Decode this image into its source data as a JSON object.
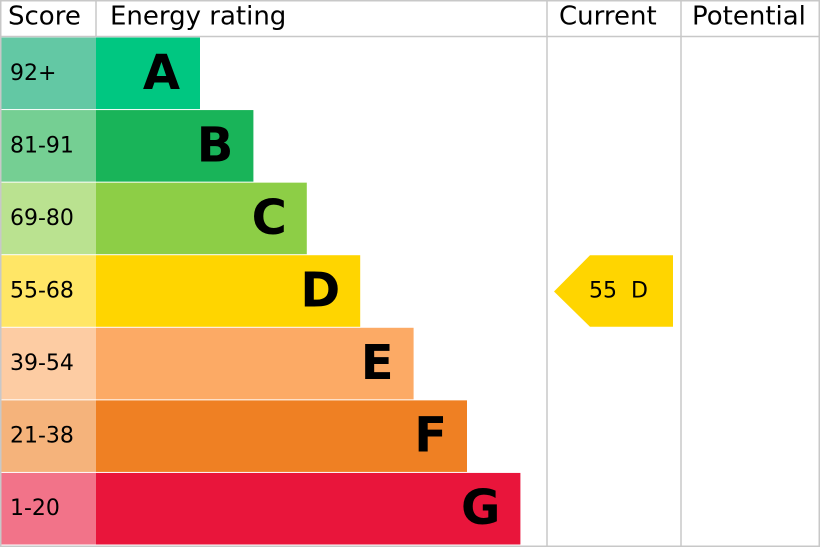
{
  "header": {
    "score": "Score",
    "rating": "Energy rating",
    "current": "Current",
    "potential": "Potential"
  },
  "bands": [
    {
      "score": "92+",
      "letter": "A",
      "color": "#00c781",
      "score_color": "#63c8a4"
    },
    {
      "score": "81-91",
      "letter": "B",
      "color": "#19b459",
      "score_color": "#75cf93"
    },
    {
      "score": "69-80",
      "letter": "C",
      "color": "#8dce46",
      "score_color": "#bae290"
    },
    {
      "score": "55-68",
      "letter": "D",
      "color": "#ffd500",
      "score_color": "#ffe666"
    },
    {
      "score": "39-54",
      "letter": "E",
      "color": "#fcaa65",
      "score_color": "#fdcca3"
    },
    {
      "score": "21-38",
      "letter": "F",
      "color": "#ef8023",
      "score_color": "#f5b37b"
    },
    {
      "score": "1-20",
      "letter": "G",
      "color": "#e9153b",
      "score_color": "#f27389"
    }
  ],
  "current": {
    "score": 55,
    "letter": "D",
    "band": 3
  }
}
